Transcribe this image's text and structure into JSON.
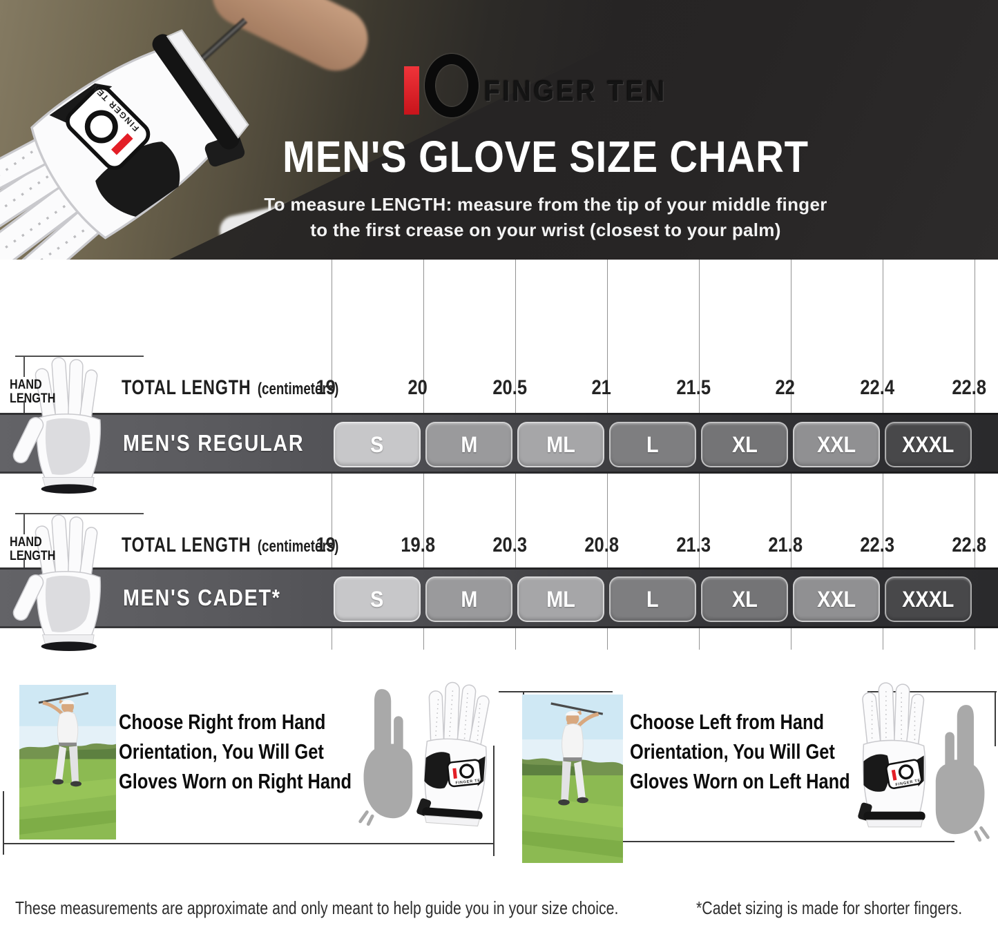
{
  "brand": {
    "logo_text": "FINGER TEN",
    "logo_red": "#e31e26"
  },
  "header": {
    "title": "MEN'S GLOVE SIZE CHART",
    "subtitle_line1": "To measure LENGTH: measure from the tip of your middle finger",
    "subtitle_line2": "to the first crease on your wrist (closest to your palm)"
  },
  "rows": [
    {
      "hand_label_line1": "HAND",
      "hand_label_line2": "LENGTH",
      "measure_label": "TOTAL LENGTH",
      "measure_unit": "(centimeters)",
      "band_label": "MEN'S REGULAR",
      "ticks": [
        "19",
        "20",
        "20.5",
        "21",
        "21.5",
        "22",
        "22.4",
        "22.8"
      ],
      "sizes": [
        "S",
        "M",
        "ML",
        "L",
        "XL",
        "XXL",
        "XXXL"
      ]
    },
    {
      "hand_label_line1": "HAND",
      "hand_label_line2": "LENGTH",
      "measure_label": "TOTAL LENGTH",
      "measure_unit": "(centimeters)",
      "band_label": "MEN'S CADET*",
      "ticks": [
        "19",
        "19.8",
        "20.3",
        "20.8",
        "21.3",
        "21.8",
        "22.3",
        "22.8"
      ],
      "sizes": [
        "S",
        "M",
        "ML",
        "L",
        "XL",
        "XXL",
        "XXXL"
      ]
    }
  ],
  "size_box_colors": [
    "#c7c7c9",
    "#9a9a9c",
    "#a6a6a8",
    "#7e7e80",
    "#747476",
    "#909092",
    "#48484a"
  ],
  "band_gradient_ends": [
    "#636367",
    "#2a2a2c"
  ],
  "orientation_sections": [
    {
      "line1": "Choose Right from Hand",
      "line2": "Orientation, You Will Get",
      "line3": "Gloves Worn on Right Hand"
    },
    {
      "line1": "Choose Left from Hand",
      "line2": "Orientation, You Will Get",
      "line3": "Gloves Worn on Left Hand"
    }
  ],
  "footnotes": {
    "left": "These measurements are approximate and only meant to help guide you in your size choice.",
    "right": "*Cadet sizing is made for shorter fingers."
  },
  "chart_data": [
    {
      "type": "table",
      "title": "MEN'S REGULAR",
      "xlabel": "TOTAL LENGTH (centimeters)",
      "ticks": [
        19,
        20,
        20.5,
        21,
        21.5,
        22,
        22.4,
        22.8
      ],
      "sizes": [
        "S",
        "M",
        "ML",
        "L",
        "XL",
        "XXL",
        "XXXL"
      ],
      "size_ranges_cm": [
        [
          19,
          20
        ],
        [
          20,
          20.5
        ],
        [
          20.5,
          21
        ],
        [
          21,
          21.5
        ],
        [
          21.5,
          22
        ],
        [
          22,
          22.4
        ],
        [
          22.4,
          22.8
        ]
      ]
    },
    {
      "type": "table",
      "title": "MEN'S CADET*",
      "xlabel": "TOTAL LENGTH (centimeters)",
      "ticks": [
        19,
        19.8,
        20.3,
        20.8,
        21.3,
        21.8,
        22.3,
        22.8
      ],
      "sizes": [
        "S",
        "M",
        "ML",
        "L",
        "XL",
        "XXL",
        "XXXL"
      ],
      "size_ranges_cm": [
        [
          19,
          19.8
        ],
        [
          19.8,
          20.3
        ],
        [
          20.3,
          20.8
        ],
        [
          20.8,
          21.3
        ],
        [
          21.3,
          21.8
        ],
        [
          21.8,
          22.3
        ],
        [
          22.3,
          22.8
        ]
      ]
    }
  ]
}
